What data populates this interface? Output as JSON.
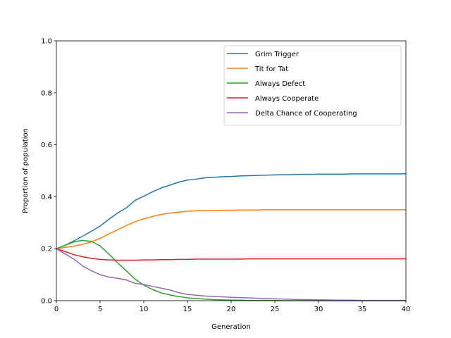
{
  "chart_data": {
    "type": "line",
    "title": "",
    "xlabel": "Generation",
    "ylabel": "Proportion of population",
    "xlim": [
      0,
      40
    ],
    "ylim": [
      0,
      1.0
    ],
    "xticks": [
      0,
      5,
      10,
      15,
      20,
      25,
      30,
      35,
      40
    ],
    "xtick_labels": [
      "0",
      "5",
      "10",
      "15",
      "20",
      "25",
      "30",
      "35",
      "40"
    ],
    "yticks": [
      0,
      0.2,
      0.4,
      0.6,
      0.8,
      1.0
    ],
    "ytick_labels": [
      "0.0",
      "0.2",
      "0.4",
      "0.6",
      "0.8",
      "1.0"
    ],
    "grid": false,
    "legend_position": "top-right",
    "x": [
      0,
      1,
      2,
      3,
      4,
      5,
      6,
      7,
      8,
      9,
      10,
      11,
      12,
      13,
      14,
      15,
      16,
      17,
      18,
      19,
      20,
      21,
      22,
      23,
      24,
      25,
      26,
      27,
      28,
      29,
      30,
      31,
      32,
      33,
      34,
      35,
      36,
      37,
      38,
      39,
      40
    ],
    "series": [
      {
        "name": "Grim Trigger",
        "color": "#1f77b4",
        "values": [
          0.2,
          0.213,
          0.23,
          0.248,
          0.267,
          0.287,
          0.313,
          0.337,
          0.357,
          0.386,
          0.402,
          0.419,
          0.434,
          0.445,
          0.456,
          0.464,
          0.468,
          0.473,
          0.475,
          0.477,
          0.478,
          0.48,
          0.481,
          0.482,
          0.483,
          0.484,
          0.485,
          0.485,
          0.486,
          0.486,
          0.487,
          0.487,
          0.487,
          0.487,
          0.488,
          0.488,
          0.488,
          0.488,
          0.488,
          0.488,
          0.488
        ]
      },
      {
        "name": "Tit for Tat",
        "color": "#ff7f0e",
        "values": [
          0.2,
          0.205,
          0.21,
          0.217,
          0.226,
          0.24,
          0.257,
          0.273,
          0.289,
          0.304,
          0.315,
          0.324,
          0.332,
          0.337,
          0.341,
          0.344,
          0.346,
          0.347,
          0.347,
          0.348,
          0.348,
          0.349,
          0.349,
          0.349,
          0.35,
          0.35,
          0.35,
          0.35,
          0.35,
          0.35,
          0.35,
          0.35,
          0.35,
          0.35,
          0.35,
          0.35,
          0.35,
          0.35,
          0.35,
          0.35,
          0.35
        ]
      },
      {
        "name": "Always Defect",
        "color": "#2ca02c",
        "values": [
          0.2,
          0.213,
          0.226,
          0.232,
          0.228,
          0.211,
          0.18,
          0.146,
          0.115,
          0.083,
          0.06,
          0.043,
          0.03,
          0.022,
          0.016,
          0.011,
          0.008,
          0.006,
          0.004,
          0.003,
          0.002,
          0.002,
          0.001,
          0.001,
          0.001,
          0.001,
          0.0,
          0.0,
          0.0,
          0.0,
          0.0,
          0.0,
          0.0,
          0.0,
          0.0,
          0.0,
          0.0,
          0.0,
          0.0,
          0.0,
          0.0
        ]
      },
      {
        "name": "Always Cooperate",
        "color": "#d62728",
        "values": [
          0.2,
          0.189,
          0.177,
          0.169,
          0.163,
          0.159,
          0.157,
          0.156,
          0.156,
          0.156,
          0.157,
          0.157,
          0.158,
          0.158,
          0.159,
          0.159,
          0.16,
          0.16,
          0.16,
          0.16,
          0.16,
          0.16,
          0.161,
          0.161,
          0.161,
          0.161,
          0.161,
          0.161,
          0.161,
          0.161,
          0.161,
          0.161,
          0.161,
          0.161,
          0.161,
          0.161,
          0.161,
          0.161,
          0.161,
          0.161,
          0.161
        ]
      },
      {
        "name": "Delta Chance of Cooperating",
        "color": "#9467bd",
        "values": [
          0.2,
          0.18,
          0.16,
          0.134,
          0.115,
          0.1,
          0.091,
          0.086,
          0.08,
          0.067,
          0.062,
          0.055,
          0.048,
          0.041,
          0.031,
          0.024,
          0.021,
          0.018,
          0.016,
          0.015,
          0.013,
          0.012,
          0.011,
          0.009,
          0.008,
          0.007,
          0.006,
          0.005,
          0.004,
          0.004,
          0.003,
          0.003,
          0.002,
          0.002,
          0.002,
          0.001,
          0.001,
          0.001,
          0.001,
          0.001,
          0.001
        ]
      }
    ]
  }
}
